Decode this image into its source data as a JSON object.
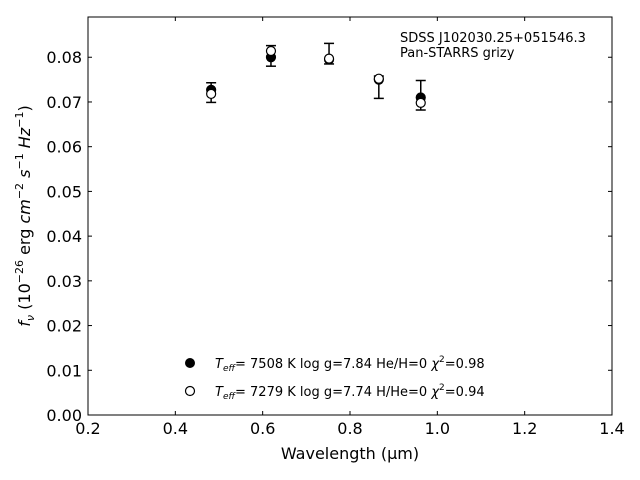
{
  "chart_data": {
    "type": "scatter",
    "title": "",
    "xlabel": "Wavelength (μm)",
    "ylabel": "f_ν (10^-26 erg cm^-2 s^-1 Hz^-1)",
    "xlim": [
      0.2,
      1.4
    ],
    "ylim": [
      0.0,
      0.089
    ],
    "xticks": [
      0.2,
      0.4,
      0.6,
      0.8,
      1.0,
      1.2,
      1.4
    ],
    "xtick_labels": [
      "0.2",
      "0.4",
      "0.6",
      "0.8",
      "1.0",
      "1.2",
      "1.4"
    ],
    "yticks": [
      0.0,
      0.01,
      0.02,
      0.03,
      0.04,
      0.05,
      0.06,
      0.07,
      0.08
    ],
    "ytick_labels": [
      "0.00",
      "0.01",
      "0.02",
      "0.03",
      "0.04",
      "0.05",
      "0.06",
      "0.07",
      "0.08"
    ],
    "grid": false,
    "annotation": [
      "SDSS J102030.25+051546.3",
      "Pan-STARRS grizy"
    ],
    "observed": {
      "x": [
        0.482,
        0.619,
        0.752,
        0.866,
        0.962
      ],
      "y": [
        0.0721,
        0.0803,
        0.0808,
        0.0733,
        0.0715
      ],
      "yerr_low": [
        0.0022,
        0.0023,
        0.0023,
        0.0025,
        0.0033
      ],
      "yerr_high": [
        0.0022,
        0.0023,
        0.0023,
        0.0025,
        0.0033
      ]
    },
    "series": [
      {
        "marker": "filled-circle",
        "x": [
          0.482,
          0.619,
          0.752,
          0.866,
          0.962
        ],
        "values": [
          0.0727,
          0.08,
          0.0795,
          0.075,
          0.071
        ]
      },
      {
        "marker": "open-circle",
        "x": [
          0.482,
          0.619,
          0.752,
          0.866,
          0.962
        ],
        "values": [
          0.0718,
          0.0814,
          0.0797,
          0.0752,
          0.0698
        ]
      }
    ],
    "legend": {
      "placement": "lower-center",
      "entries": [
        {
          "teff": "7508 K",
          "logg": "log g=7.84",
          "comp": "He/H=0",
          "chi2": "=0.98"
        },
        {
          "teff": "7279 K",
          "logg": "log g=7.74",
          "comp": "H/He=0",
          "chi2": "=0.94"
        }
      ]
    }
  }
}
